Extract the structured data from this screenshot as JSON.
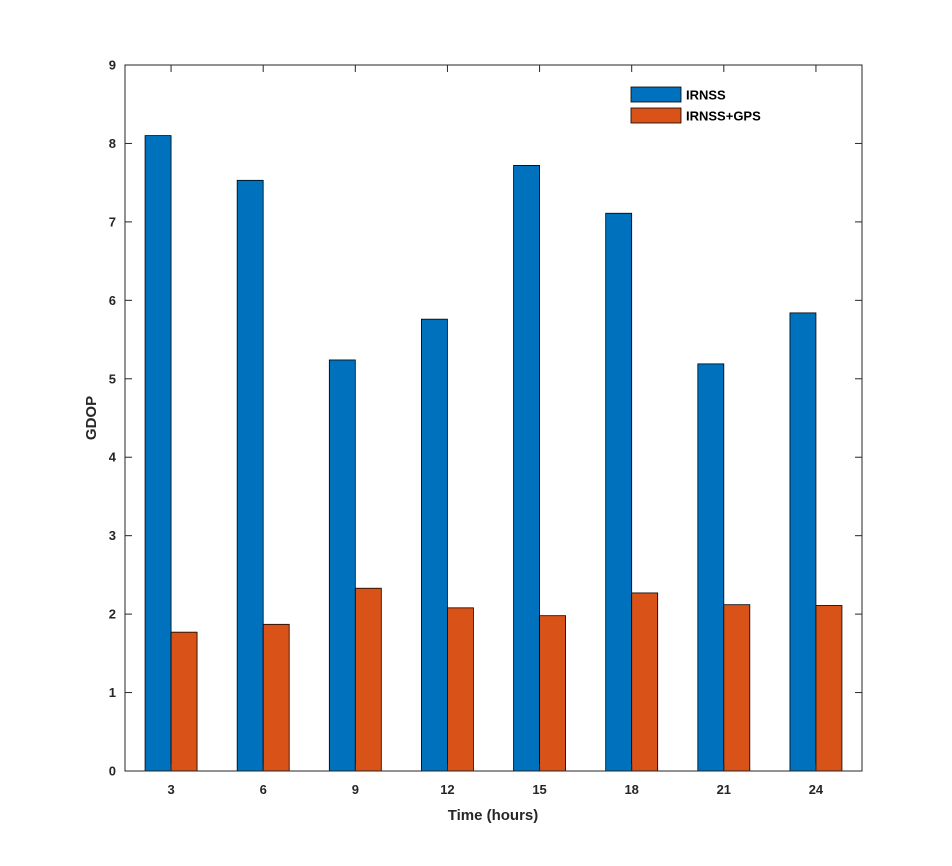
{
  "chart_data": {
    "type": "bar",
    "xlabel": "Time (hours)",
    "ylabel": "GDOP",
    "ylim": [
      0,
      9
    ],
    "yticks": [
      "0",
      "1",
      "2",
      "3",
      "4",
      "5",
      "6",
      "7",
      "8",
      "9"
    ],
    "categories": [
      "3",
      "6",
      "9",
      "12",
      "15",
      "18",
      "21",
      "24"
    ],
    "series": [
      {
        "name": "IRNSS",
        "color": "#0072BD",
        "values": [
          8.1,
          7.53,
          5.24,
          5.76,
          7.72,
          7.11,
          5.19,
          5.84
        ]
      },
      {
        "name": "IRNSS+GPS",
        "color": "#D95319",
        "values": [
          1.77,
          1.87,
          2.33,
          2.08,
          1.98,
          2.27,
          2.12,
          2.11
        ]
      }
    ],
    "legend_position": "top-right",
    "grid": false
  }
}
